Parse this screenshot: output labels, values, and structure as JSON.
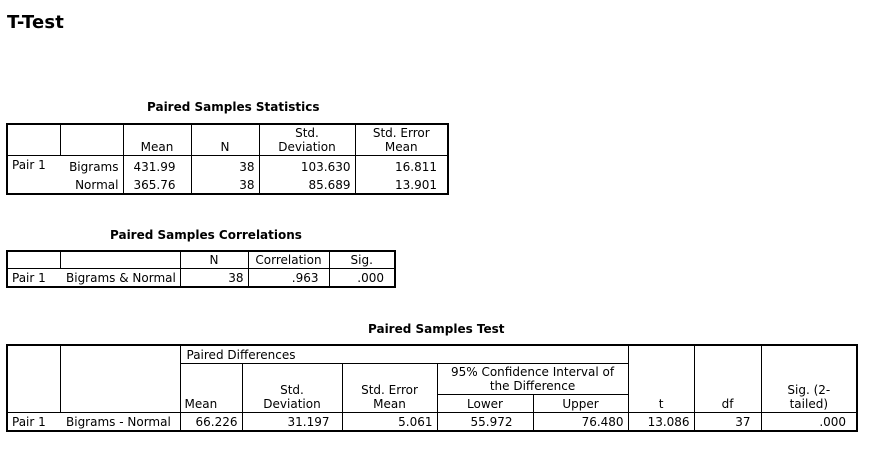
{
  "page_title": "T-Test",
  "stats": {
    "title": "Paired Samples Statistics",
    "headers": {
      "mean": "Mean",
      "n": "N",
      "std_dev": "Std.\nDeviation",
      "se_mean": "Std. Error\nMean"
    },
    "pair_label": "Pair 1",
    "rows": [
      {
        "var": "Bigrams",
        "mean": "431.99",
        "n": "38",
        "std_dev": "103.630",
        "se_mean": "16.811"
      },
      {
        "var": "Normal",
        "mean": "365.76",
        "n": "38",
        "std_dev": "85.689",
        "se_mean": "13.901"
      }
    ]
  },
  "corr": {
    "title": "Paired Samples Correlations",
    "headers": {
      "n": "N",
      "correlation": "Correlation",
      "sig": "Sig."
    },
    "pair_label": "Pair 1",
    "row": {
      "var": "Bigrams & Normal",
      "n": "38",
      "correlation": ".963",
      "sig": ".000"
    }
  },
  "test": {
    "title": "Paired Samples Test",
    "headers": {
      "paired_diff": "Paired Differences",
      "ci": "95% Confidence Interval of\nthe Difference",
      "mean": "Mean",
      "std_dev": "Std.\nDeviation",
      "se_mean": "Std. Error\nMean",
      "lower": "Lower",
      "upper": "Upper",
      "t": "t",
      "df": "df",
      "sig": "Sig. (2-\ntailed)"
    },
    "pair_label": "Pair 1",
    "row": {
      "var": "Bigrams - Normal",
      "mean": "66.226",
      "std_dev": "31.197",
      "se_mean": "5.061",
      "lower": "55.972",
      "upper": "76.480",
      "t": "13.086",
      "df": "37",
      "sig": ".000"
    }
  }
}
